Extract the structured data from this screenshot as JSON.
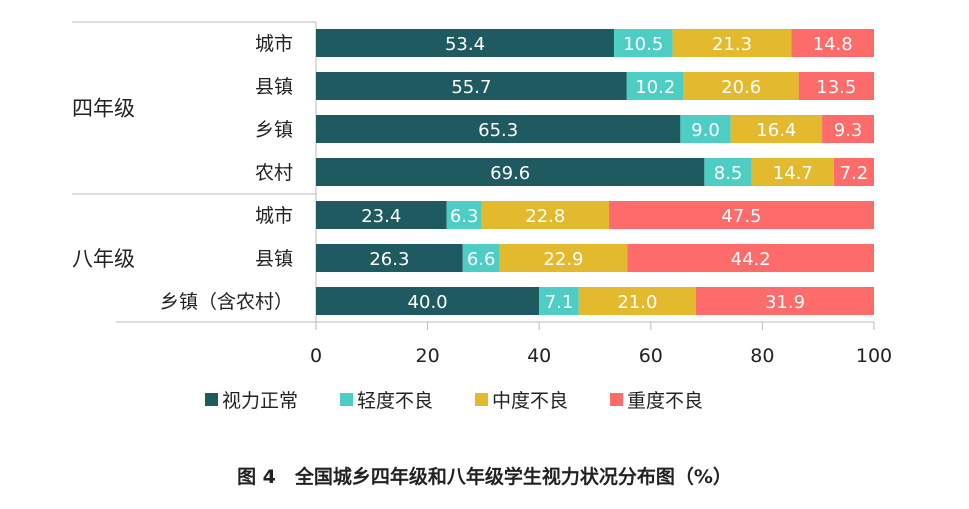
{
  "chart_data": {
    "type": "bar",
    "orientation": "horizontal",
    "stacked": true,
    "groups": [
      {
        "label": "四年级",
        "categories": [
          "城市",
          "县镇",
          "乡镇",
          "农村"
        ]
      },
      {
        "label": "八年级",
        "categories": [
          "城市",
          "县镇",
          "乡镇（含农村）"
        ]
      }
    ],
    "series": [
      {
        "name": "视力正常",
        "color": "#1f5a60",
        "values": [
          53.4,
          55.7,
          65.3,
          69.6,
          23.4,
          26.3,
          40.0
        ]
      },
      {
        "name": "轻度不良",
        "color": "#4ecdc4",
        "values": [
          10.5,
          10.2,
          9.0,
          8.5,
          6.3,
          6.6,
          7.1
        ]
      },
      {
        "name": "中度不良",
        "color": "#e3b92e",
        "values": [
          21.3,
          20.6,
          16.4,
          14.7,
          22.8,
          22.9,
          21.0
        ]
      },
      {
        "name": "重度不良",
        "color": "#fd6b6b",
        "values": [
          14.8,
          13.5,
          9.3,
          7.2,
          47.5,
          44.2,
          31.9
        ]
      }
    ],
    "xlim": [
      0,
      100
    ],
    "xticks": [
      0,
      20,
      40,
      60,
      80,
      100
    ],
    "legend_position": "bottom",
    "grid": false,
    "title": "图 4　全国城乡四年级和八年级学生视力状况分布图（%）"
  }
}
